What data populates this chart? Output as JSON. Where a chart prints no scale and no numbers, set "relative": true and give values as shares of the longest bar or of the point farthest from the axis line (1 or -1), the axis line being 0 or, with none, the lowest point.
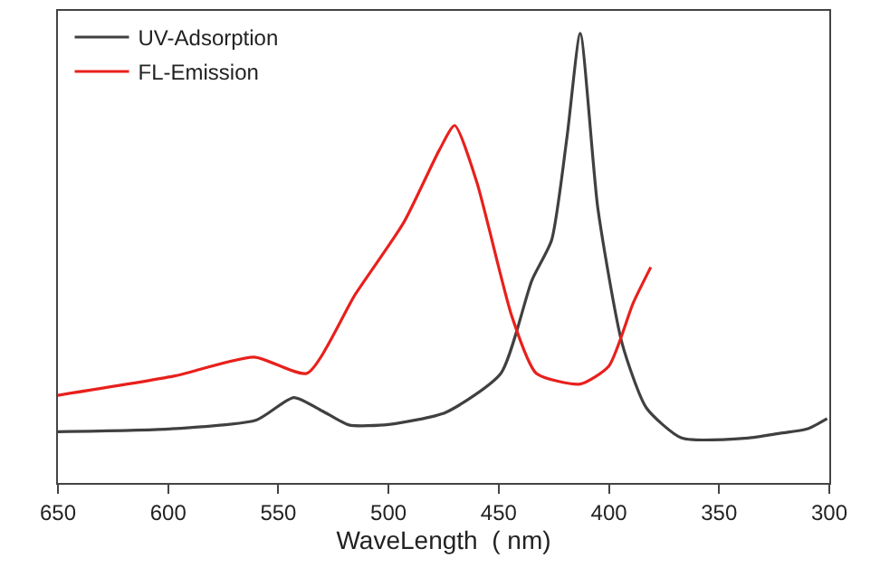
{
  "chart_data": {
    "type": "line",
    "xlabel": "WaveLength  ( nm)",
    "relative": true,
    "xlim": [
      650,
      300
    ],
    "xticks": [
      650,
      600,
      550,
      500,
      450,
      400,
      350,
      300
    ],
    "legend": "top left",
    "marker": "none",
    "line_style": "solid",
    "series": [
      {
        "name": "UV-Adsorption",
        "color": "#404040",
        "x": [
          650,
          600,
          560,
          543,
          530,
          518,
          500,
          474,
          449,
          435,
          426,
          419,
          413,
          405,
          394,
          383,
          367,
          337,
          323,
          310,
          301
        ],
        "values": [
          0.114,
          0.12,
          0.14,
          0.19,
          0.16,
          0.129,
          0.13,
          0.157,
          0.244,
          0.45,
          0.54,
          0.77,
          1,
          0.61,
          0.31,
          0.167,
          0.1,
          0.1,
          0.11,
          0.12,
          0.143
        ]
      },
      {
        "name": "FL-Emission",
        "color": "#e8201c",
        "x": [
          650,
          597,
          561,
          537,
          515,
          493,
          477,
          470,
          460,
          444,
          433,
          413,
          400,
          389,
          381
        ],
        "values": [
          0.195,
          0.238,
          0.28,
          0.244,
          0.42,
          0.58,
          0.74,
          0.795,
          0.67,
          0.37,
          0.244,
          0.22,
          0.26,
          0.4,
          0.48
        ]
      }
    ]
  }
}
